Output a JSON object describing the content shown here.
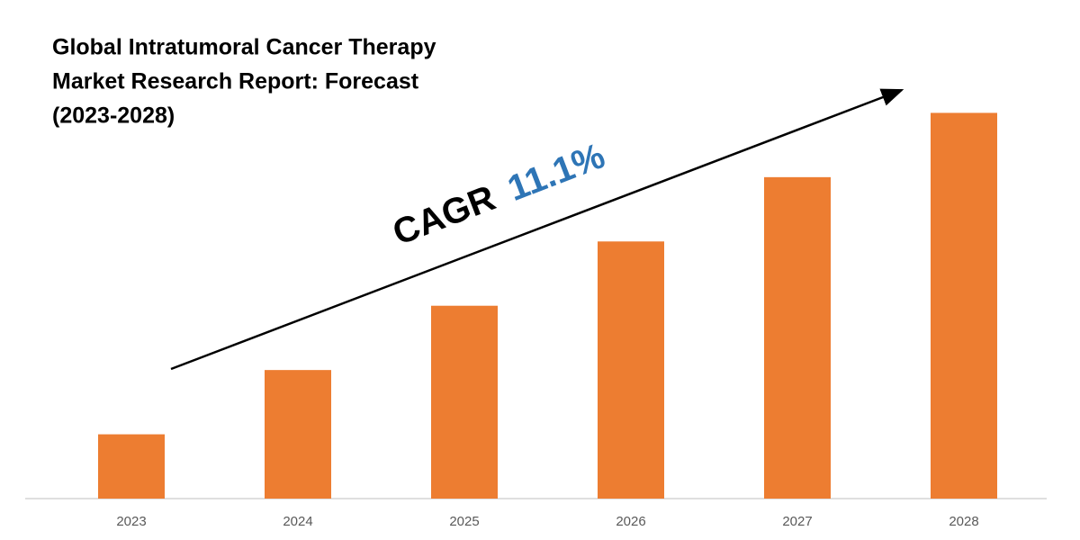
{
  "chart_data": {
    "type": "bar",
    "title": [
      "Global Intratumoral Cancer Therapy",
      "Market Research Report: Forecast",
      "(2023-2028)"
    ],
    "annotation": {
      "text": "CAGR",
      "rate": "11.1%"
    },
    "categories": [
      "2023",
      "2024",
      "2025",
      "2026",
      "2027",
      "2028"
    ],
    "values": [
      1,
      2,
      3,
      4,
      5,
      6
    ],
    "color": "#ed7d31",
    "ylim": [
      0,
      7
    ]
  }
}
